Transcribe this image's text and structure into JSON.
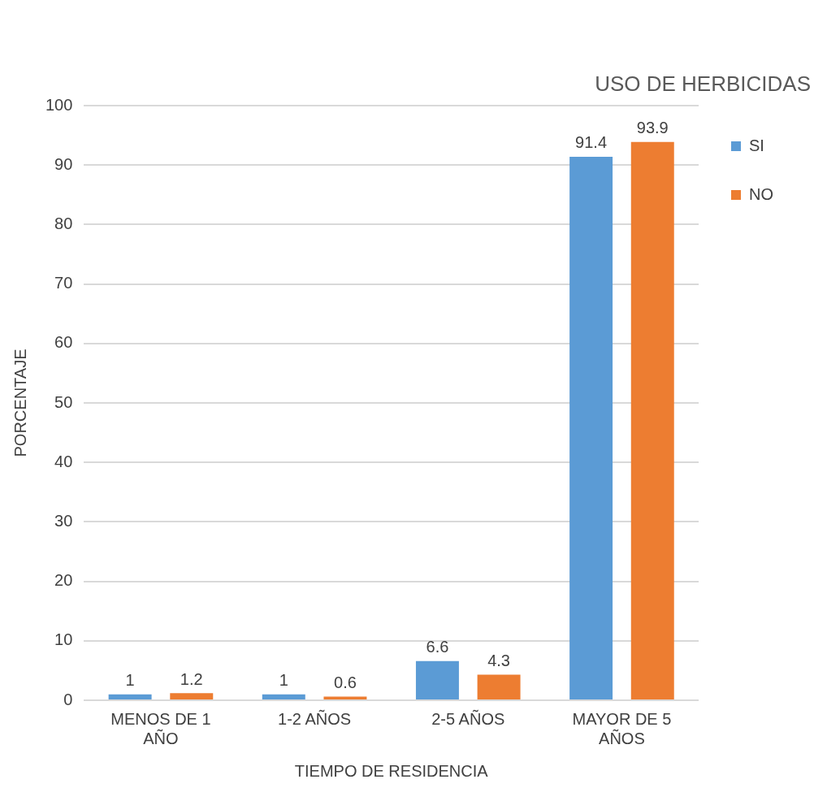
{
  "chart_data": {
    "type": "bar",
    "xlabel": "TIEMPO DE RESIDENCIA",
    "ylabel": "PORCENTAJE",
    "legend_title": "USO DE HERBICIDAS",
    "categories": [
      "MENOS DE 1 AÑO",
      "1-2 AÑOS",
      "2-5 AÑOS",
      "MAYOR DE 5 AÑOS"
    ],
    "series": [
      {
        "name": "SI",
        "color": "#5b9bd5",
        "values": [
          1,
          1,
          6.6,
          91.4
        ]
      },
      {
        "name": "NO",
        "color": "#ed7d31",
        "values": [
          1.2,
          0.6,
          4.3,
          93.9
        ]
      }
    ],
    "ylim": [
      0,
      100
    ],
    "yticks": [
      0,
      10,
      20,
      30,
      40,
      50,
      60,
      70,
      80,
      90,
      100
    ],
    "grid": "y",
    "legend": "right",
    "data_labels": true
  }
}
